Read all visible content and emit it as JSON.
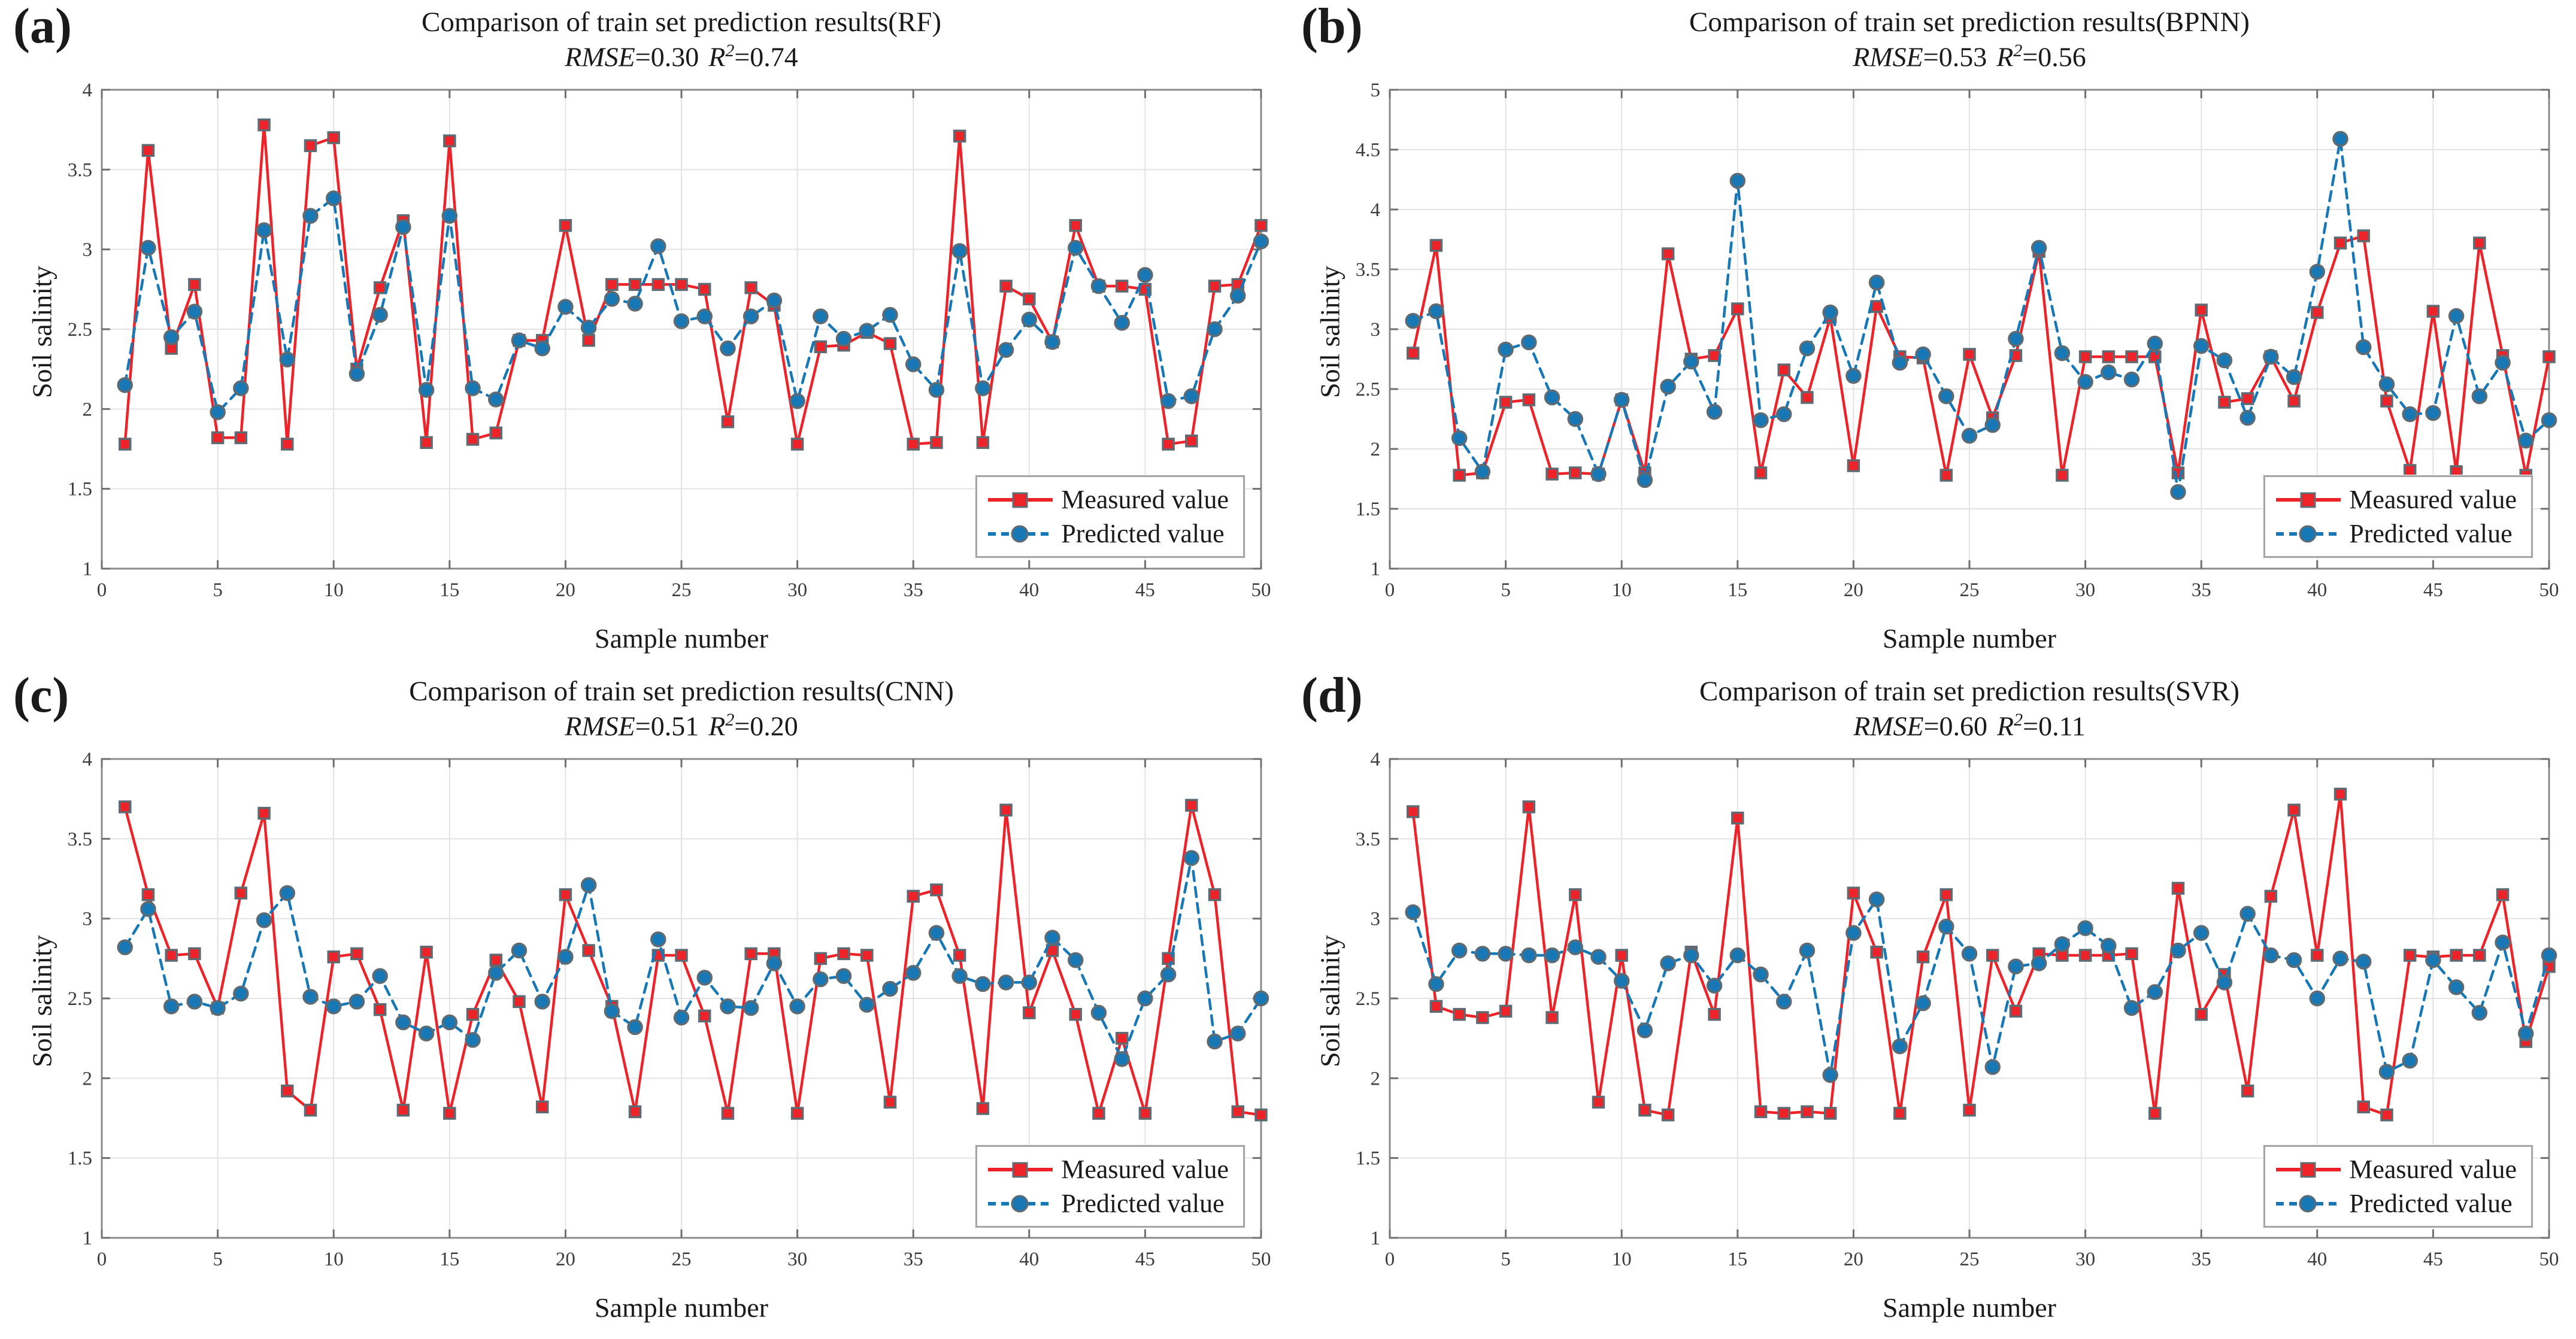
{
  "page_bg": "#ffffff",
  "colors": {
    "page_bg": "#ffffff",
    "measured": "#ee2329",
    "predicted": "#1878b5",
    "marker_edge": "#5f6b72",
    "grid": "#e3e3e3",
    "axis": "#8b8b8b",
    "tick": "#6f6f6f",
    "text": "#1a1a1a",
    "legend_border": "#a6a6a6"
  },
  "legend": {
    "measured_label": "Measured value",
    "predicted_label": "Predicted value"
  },
  "chart_data": [
    {
      "type": "line",
      "panel_label": "(a)",
      "title": "Comparison of train set prediction results(RF)",
      "stats": {
        "rmse_label": "RMSE",
        "rmse_eq": "=0.30",
        "r2_label": "R",
        "r2_sup": "2",
        "r2_eq": "=0.74"
      },
      "xlabel": "Sample number",
      "ylabel": "Soil salinity",
      "xlim": [
        0,
        50
      ],
      "ylim": [
        1,
        4
      ],
      "xticks": [
        0,
        5,
        10,
        15,
        20,
        25,
        30,
        35,
        40,
        45,
        50
      ],
      "yticks": [
        1,
        1.5,
        2,
        2.5,
        3,
        3.5,
        4
      ],
      "grid": true,
      "legend_position": "bottom-right",
      "x": [
        1,
        2,
        3,
        4,
        5,
        6,
        7,
        8,
        9,
        10,
        11,
        12,
        13,
        14,
        15,
        16,
        17,
        18,
        19,
        20,
        21,
        22,
        23,
        24,
        25,
        26,
        27,
        28,
        29,
        30,
        31,
        32,
        33,
        34,
        35,
        36,
        37,
        38,
        39,
        40,
        41,
        42,
        43,
        44,
        45,
        46,
        47,
        48,
        49,
        50
      ],
      "series": [
        {
          "name": "Measured value",
          "marker": "square",
          "style": "solid",
          "values": [
            1.78,
            3.62,
            2.38,
            2.78,
            1.82,
            1.82,
            3.78,
            1.78,
            3.65,
            3.7,
            2.25,
            2.76,
            3.18,
            1.79,
            3.68,
            1.81,
            1.85,
            2.43,
            2.43,
            3.15,
            2.43,
            2.78,
            2.78,
            2.78,
            2.78,
            2.75,
            1.92,
            2.76,
            2.65,
            1.78,
            2.39,
            2.4,
            2.48,
            2.41,
            1.78,
            1.79,
            3.71,
            1.79,
            2.77,
            2.69,
            2.42,
            3.15,
            2.77,
            2.77,
            2.75,
            1.78,
            1.8,
            2.77,
            2.78,
            3.15
          ]
        },
        {
          "name": "Predicted value",
          "marker": "circle",
          "style": "dashed",
          "values": [
            2.15,
            3.01,
            2.45,
            2.61,
            1.98,
            2.13,
            3.12,
            2.31,
            3.21,
            3.32,
            2.22,
            2.59,
            3.14,
            2.12,
            3.21,
            2.13,
            2.06,
            2.43,
            2.38,
            2.64,
            2.51,
            2.69,
            2.66,
            3.02,
            2.55,
            2.58,
            2.38,
            2.58,
            2.68,
            2.05,
            2.58,
            2.44,
            2.49,
            2.59,
            2.28,
            2.12,
            2.99,
            2.13,
            2.37,
            2.56,
            2.42,
            3.01,
            2.77,
            2.54,
            2.84,
            2.05,
            2.08,
            2.5,
            2.71,
            3.05
          ]
        }
      ]
    },
    {
      "type": "line",
      "panel_label": "(b)",
      "title": "Comparison of train set prediction results(BPNN)",
      "stats": {
        "rmse_label": "RMSE",
        "rmse_eq": "=0.53",
        "r2_label": "R",
        "r2_sup": "2",
        "r2_eq": "=0.56"
      },
      "xlabel": "Sample number",
      "ylabel": "Soil salinity",
      "xlim": [
        0,
        50
      ],
      "ylim": [
        1,
        5
      ],
      "xticks": [
        0,
        5,
        10,
        15,
        20,
        25,
        30,
        35,
        40,
        45,
        50
      ],
      "yticks": [
        1,
        1.5,
        2,
        2.5,
        3,
        3.5,
        4,
        4.5,
        5
      ],
      "grid": true,
      "legend_position": "bottom-right",
      "x": [
        1,
        2,
        3,
        4,
        5,
        6,
        7,
        8,
        9,
        10,
        11,
        12,
        13,
        14,
        15,
        16,
        17,
        18,
        19,
        20,
        21,
        22,
        23,
        24,
        25,
        26,
        27,
        28,
        29,
        30,
        31,
        32,
        33,
        34,
        35,
        36,
        37,
        38,
        39,
        40,
        41,
        42,
        43,
        44,
        45,
        46,
        47,
        48,
        49,
        50
      ],
      "series": [
        {
          "name": "Measured value",
          "marker": "square",
          "style": "solid",
          "values": [
            2.8,
            3.7,
            1.78,
            1.8,
            2.39,
            2.41,
            1.79,
            1.8,
            1.79,
            2.41,
            1.8,
            3.63,
            2.75,
            2.78,
            3.17,
            1.8,
            2.66,
            2.43,
            3.1,
            1.86,
            3.19,
            2.77,
            2.76,
            1.78,
            2.79,
            2.26,
            2.78,
            3.65,
            1.78,
            2.77,
            2.77,
            2.77,
            2.77,
            1.8,
            3.16,
            2.39,
            2.42,
            2.77,
            2.4,
            3.14,
            3.72,
            3.78,
            2.4,
            1.82,
            3.15,
            1.81,
            3.72,
            2.78,
            1.78,
            2.77
          ]
        },
        {
          "name": "Predicted value",
          "marker": "circle",
          "style": "dashed",
          "values": [
            3.07,
            3.15,
            2.09,
            1.81,
            2.83,
            2.89,
            2.43,
            2.25,
            1.79,
            2.41,
            1.74,
            2.52,
            2.73,
            2.31,
            4.24,
            2.24,
            2.29,
            2.84,
            3.14,
            2.61,
            3.39,
            2.72,
            2.79,
            2.44,
            2.11,
            2.2,
            2.92,
            3.68,
            2.8,
            2.56,
            2.64,
            2.58,
            2.88,
            1.64,
            2.86,
            2.74,
            2.26,
            2.77,
            2.6,
            3.48,
            4.59,
            2.85,
            2.54,
            2.29,
            2.3,
            3.11,
            2.44,
            2.72,
            2.07,
            2.24
          ]
        }
      ]
    },
    {
      "type": "line",
      "panel_label": "(c)",
      "title": "Comparison of train set prediction results(CNN)",
      "stats": {
        "rmse_label": "RMSE",
        "rmse_eq": "=0.51",
        "r2_label": "R",
        "r2_sup": "2",
        "r2_eq": "=0.20"
      },
      "xlabel": "Sample number",
      "ylabel": "Soil salinity",
      "xlim": [
        0,
        50
      ],
      "ylim": [
        1,
        4
      ],
      "xticks": [
        0,
        5,
        10,
        15,
        20,
        25,
        30,
        35,
        40,
        45,
        50
      ],
      "yticks": [
        1,
        1.5,
        2,
        2.5,
        3,
        3.5,
        4
      ],
      "grid": true,
      "legend_position": "bottom-right",
      "x": [
        1,
        2,
        3,
        4,
        5,
        6,
        7,
        8,
        9,
        10,
        11,
        12,
        13,
        14,
        15,
        16,
        17,
        18,
        19,
        20,
        21,
        22,
        23,
        24,
        25,
        26,
        27,
        28,
        29,
        30,
        31,
        32,
        33,
        34,
        35,
        36,
        37,
        38,
        39,
        40,
        41,
        42,
        43,
        44,
        45,
        46,
        47,
        48,
        49,
        50
      ],
      "series": [
        {
          "name": "Measured value",
          "marker": "square",
          "style": "solid",
          "values": [
            3.7,
            3.15,
            2.77,
            2.78,
            2.44,
            3.16,
            3.66,
            1.92,
            1.8,
            2.76,
            2.78,
            2.43,
            1.8,
            2.79,
            1.78,
            2.4,
            2.74,
            2.48,
            1.82,
            3.15,
            2.8,
            2.45,
            1.79,
            2.77,
            2.77,
            2.39,
            1.78,
            2.78,
            2.78,
            1.78,
            2.75,
            2.78,
            2.77,
            1.85,
            3.14,
            3.18,
            2.77,
            1.81,
            3.68,
            2.41,
            2.8,
            2.4,
            1.78,
            2.25,
            1.78,
            2.75,
            3.71,
            3.15,
            1.79,
            1.77
          ]
        },
        {
          "name": "Predicted value",
          "marker": "circle",
          "style": "dashed",
          "values": [
            2.82,
            3.06,
            2.45,
            2.48,
            2.44,
            2.53,
            2.99,
            3.16,
            2.51,
            2.45,
            2.48,
            2.64,
            2.35,
            2.28,
            2.35,
            2.24,
            2.66,
            2.8,
            2.48,
            2.76,
            3.21,
            2.42,
            2.32,
            2.87,
            2.38,
            2.63,
            2.45,
            2.44,
            2.72,
            2.45,
            2.62,
            2.64,
            2.46,
            2.56,
            2.66,
            2.91,
            2.64,
            2.59,
            2.6,
            2.6,
            2.88,
            2.74,
            2.41,
            2.12,
            2.5,
            2.65,
            3.38,
            2.23,
            2.28,
            2.5
          ]
        }
      ]
    },
    {
      "type": "line",
      "panel_label": "(d)",
      "title": "Comparison of train set prediction results(SVR)",
      "stats": {
        "rmse_label": "RMSE",
        "rmse_eq": "=0.60",
        "r2_label": "R",
        "r2_sup": "2",
        "r2_eq": "=0.11"
      },
      "xlabel": "Sample number",
      "ylabel": "Soil salinity",
      "xlim": [
        0,
        50
      ],
      "ylim": [
        1,
        4
      ],
      "xticks": [
        0,
        5,
        10,
        15,
        20,
        25,
        30,
        35,
        40,
        45,
        50
      ],
      "yticks": [
        1,
        1.5,
        2,
        2.5,
        3,
        3.5,
        4
      ],
      "grid": true,
      "legend_position": "bottom-right",
      "x": [
        1,
        2,
        3,
        4,
        5,
        6,
        7,
        8,
        9,
        10,
        11,
        12,
        13,
        14,
        15,
        16,
        17,
        18,
        19,
        20,
        21,
        22,
        23,
        24,
        25,
        26,
        27,
        28,
        29,
        30,
        31,
        32,
        33,
        34,
        35,
        36,
        37,
        38,
        39,
        40,
        41,
        42,
        43,
        44,
        45,
        46,
        47,
        48,
        49,
        50
      ],
      "series": [
        {
          "name": "Measured value",
          "marker": "square",
          "style": "solid",
          "values": [
            3.67,
            2.45,
            2.4,
            2.38,
            2.42,
            3.7,
            2.38,
            3.15,
            1.85,
            2.77,
            1.8,
            1.77,
            2.79,
            2.4,
            3.63,
            1.79,
            1.78,
            1.79,
            1.78,
            3.16,
            2.79,
            1.78,
            2.76,
            3.15,
            1.8,
            2.77,
            2.42,
            2.78,
            2.77,
            2.77,
            2.77,
            2.78,
            1.78,
            3.19,
            2.4,
            2.65,
            1.92,
            3.14,
            3.68,
            2.77,
            3.78,
            1.82,
            1.77,
            2.77,
            2.76,
            2.77,
            2.77,
            3.15,
            2.23,
            2.7
          ]
        },
        {
          "name": "Predicted value",
          "marker": "circle",
          "style": "dashed",
          "values": [
            3.04,
            2.59,
            2.8,
            2.78,
            2.78,
            2.77,
            2.77,
            2.82,
            2.76,
            2.61,
            2.3,
            2.72,
            2.77,
            2.58,
            2.77,
            2.65,
            2.48,
            2.8,
            2.02,
            2.91,
            3.12,
            2.2,
            2.47,
            2.95,
            2.78,
            2.07,
            2.7,
            2.72,
            2.84,
            2.94,
            2.83,
            2.44,
            2.54,
            2.8,
            2.91,
            2.6,
            3.03,
            2.77,
            2.74,
            2.5,
            2.75,
            2.73,
            2.04,
            2.11,
            2.74,
            2.57,
            2.41,
            2.85,
            2.28,
            2.77
          ]
        }
      ]
    }
  ]
}
